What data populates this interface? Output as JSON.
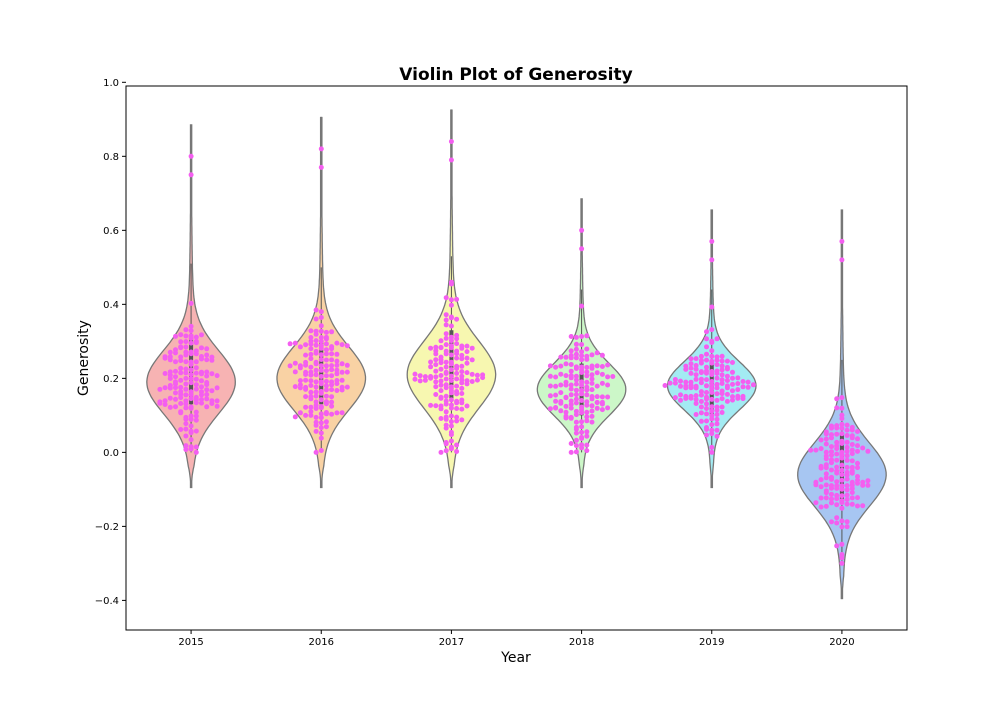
{
  "chart_data": {
    "type": "violin",
    "title": "Violin Plot of Generosity",
    "xlabel": "Year",
    "ylabel": "Generosity",
    "ylim": [
      -0.48,
      0.99
    ],
    "yticks": [
      -0.4,
      -0.2,
      0.0,
      0.2,
      0.4,
      0.6,
      0.8,
      1.0
    ],
    "ytick_labels": [
      "−0.4",
      "−0.2",
      "0.0",
      "0.2",
      "0.4",
      "0.6",
      "0.8",
      "1.0"
    ],
    "categories": [
      "2015",
      "2016",
      "2017",
      "2018",
      "2019",
      "2020"
    ],
    "grid": false,
    "legend": "none",
    "violin_colors": [
      "#f7b3b3",
      "#f9d2a4",
      "#f7f7b0",
      "#ccf7c8",
      "#a3ebf3",
      "#a7c6f2"
    ],
    "violin_outline_color": "#777777",
    "point_color": "#f45ef0",
    "series": [
      {
        "name": "2015",
        "min": 0.0,
        "q1": 0.13,
        "median": 0.21,
        "q3": 0.31,
        "max": 0.8,
        "kde_peak": 0.19,
        "kde_spread": 0.085
      },
      {
        "name": "2016",
        "min": 0.0,
        "q1": 0.13,
        "median": 0.2,
        "q3": 0.3,
        "max": 0.82,
        "kde_peak": 0.2,
        "kde_spread": 0.085
      },
      {
        "name": "2017",
        "min": 0.0,
        "q1": 0.14,
        "median": 0.22,
        "q3": 0.33,
        "max": 0.84,
        "kde_peak": 0.21,
        "kde_spread": 0.09
      },
      {
        "name": "2018",
        "min": 0.0,
        "q1": 0.1,
        "median": 0.17,
        "q3": 0.24,
        "max": 0.6,
        "kde_peak": 0.17,
        "kde_spread": 0.07
      },
      {
        "name": "2019",
        "min": 0.0,
        "q1": 0.1,
        "median": 0.17,
        "q3": 0.24,
        "max": 0.57,
        "kde_peak": 0.18,
        "kde_spread": 0.065
      },
      {
        "name": "2020",
        "min": -0.3,
        "q1": -0.13,
        "median": -0.05,
        "q3": 0.05,
        "max": 0.57,
        "kde_peak": -0.06,
        "kde_spread": 0.085
      }
    ]
  }
}
